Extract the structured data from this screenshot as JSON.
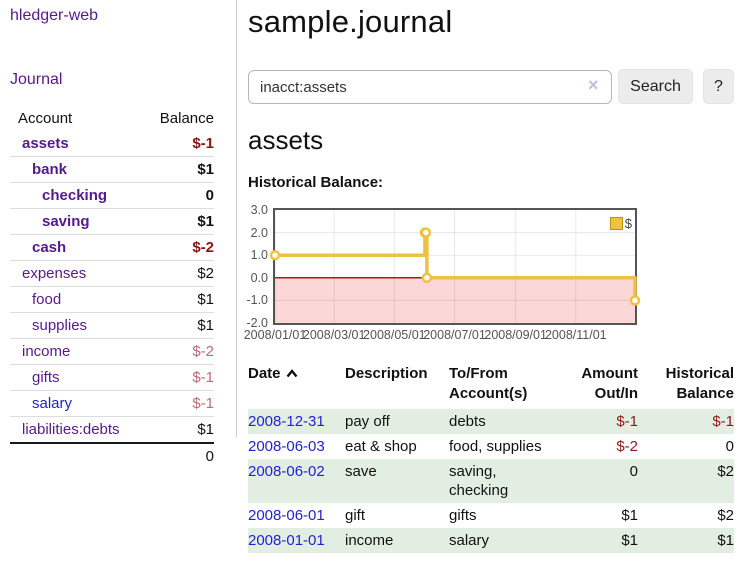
{
  "app": {
    "brand": "hledger-web",
    "title": "sample.journal"
  },
  "sidebar": {
    "journal_link": "Journal",
    "table": {
      "account_header": "Account",
      "balance_header": "Balance"
    },
    "accounts": [
      {
        "name": "assets",
        "level": 1,
        "bold": true,
        "balance": "$-1",
        "balance_style": "neg-strong",
        "link_color": "purple"
      },
      {
        "name": "bank",
        "level": 2,
        "bold": true,
        "balance": "$1",
        "balance_style": "pos",
        "link_color": "purple"
      },
      {
        "name": "checking",
        "level": 3,
        "bold": true,
        "balance": "0",
        "balance_style": "pos",
        "link_color": "purple"
      },
      {
        "name": "saving",
        "level": 3,
        "bold": true,
        "balance": "$1",
        "balance_style": "pos",
        "link_color": "purple"
      },
      {
        "name": "cash",
        "level": 2,
        "bold": true,
        "balance": "$-2",
        "balance_style": "neg-strong",
        "link_color": "purple"
      },
      {
        "name": "expenses",
        "level": 1,
        "bold": false,
        "balance": "$2",
        "balance_style": "pos",
        "link_color": "purple"
      },
      {
        "name": "food",
        "level": 2,
        "bold": false,
        "balance": "$1",
        "balance_style": "pos",
        "link_color": "purple"
      },
      {
        "name": "supplies",
        "level": 2,
        "bold": false,
        "balance": "$1",
        "balance_style": "pos",
        "link_color": "purple"
      },
      {
        "name": "income",
        "level": 1,
        "bold": false,
        "balance": "$-2",
        "balance_style": "neg-soft",
        "link_color": "purple"
      },
      {
        "name": "gifts",
        "level": 2,
        "bold": false,
        "balance": "$-1",
        "balance_style": "neg-soft",
        "link_color": "purple"
      },
      {
        "name": "salary",
        "level": 2,
        "bold": false,
        "balance": "$-1",
        "balance_style": "neg-soft",
        "link_color": "blue"
      },
      {
        "name": "liabilities:debts",
        "level": 1,
        "bold": false,
        "balance": "$1",
        "balance_style": "pos",
        "link_color": "purple"
      }
    ],
    "total": "0"
  },
  "search": {
    "value": "inacct:assets",
    "clear_glyph": "×",
    "button": "Search",
    "help_button": "?"
  },
  "account_page": {
    "heading": "assets",
    "chart_label": "Historical Balance:"
  },
  "chart_data": {
    "type": "line",
    "title": "Historical Balance",
    "step": true,
    "series": [
      {
        "name": "$",
        "points": [
          [
            "2008-01-01",
            1
          ],
          [
            "2008-06-01",
            2
          ],
          [
            "2008-06-02",
            2
          ],
          [
            "2008-06-03",
            0
          ],
          [
            "2008-12-31",
            -1
          ]
        ]
      }
    ],
    "x_range": [
      "2008-01-01",
      "2008-12-31"
    ],
    "ylim": [
      -2,
      3
    ],
    "x_ticks": [
      "2008/01/01",
      "2008/03/01",
      "2008/05/01",
      "2008/07/01",
      "2008/09/01",
      "2008/11/01"
    ],
    "y_ticks": [
      "3.0",
      "2.0",
      "1.0",
      "0.0",
      "-1.0",
      "-2.0"
    ],
    "grid": true,
    "legend": {
      "position": "top-right",
      "label": "$"
    },
    "line_color": "#edc240",
    "marker_fill": "#ffffff",
    "zero_line_color": "#a61c1c",
    "negative_region_color": "#fcd7d7"
  },
  "register": {
    "headers": {
      "date": "Date",
      "description": "Description",
      "tofrom": "To/From Account(s)",
      "amount": "Amount Out/In",
      "balance": "Historical Balance"
    },
    "rows": [
      {
        "date": "2008-12-31",
        "description": "pay off",
        "accounts": "debts",
        "amount": "$-1",
        "amount_neg": true,
        "balance": "$-1",
        "balance_neg": true
      },
      {
        "date": "2008-06-03",
        "description": "eat & shop",
        "accounts": "food, supplies",
        "amount": "$-2",
        "amount_neg": true,
        "balance": "0",
        "balance_neg": false
      },
      {
        "date": "2008-06-02",
        "description": "save",
        "accounts": "saving, checking",
        "amount": "0",
        "amount_neg": false,
        "balance": "$2",
        "balance_neg": false
      },
      {
        "date": "2008-06-01",
        "description": "gift",
        "accounts": "gifts",
        "amount": "$1",
        "amount_neg": false,
        "balance": "$2",
        "balance_neg": false
      },
      {
        "date": "2008-01-01",
        "description": "income",
        "accounts": "salary",
        "amount": "$1",
        "amount_neg": false,
        "balance": "$1",
        "balance_neg": false
      }
    ]
  }
}
